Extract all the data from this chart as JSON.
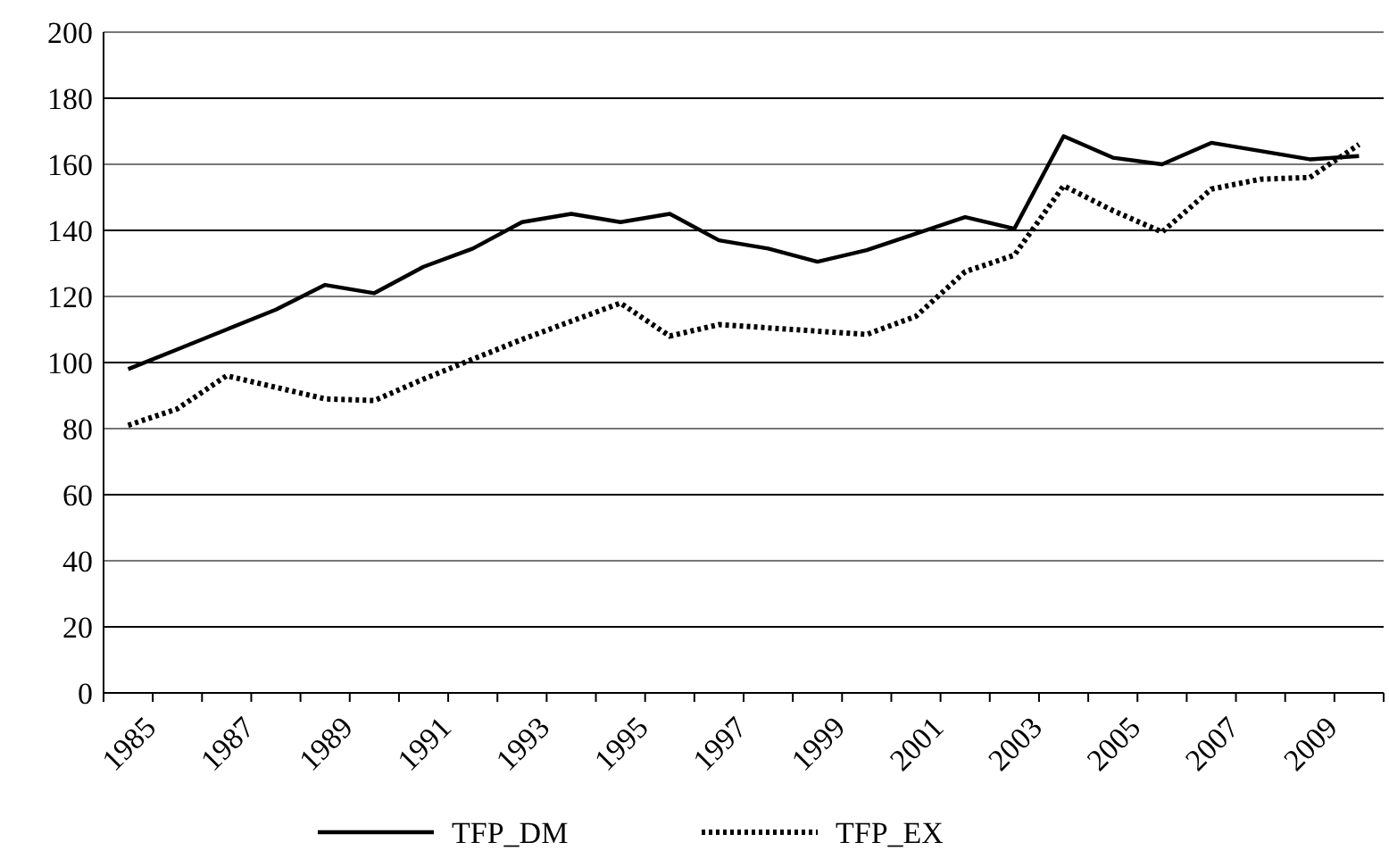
{
  "chart_data": {
    "type": "line",
    "categories": [
      "1985",
      null,
      "1987",
      null,
      "1989",
      null,
      "1991",
      null,
      "1993",
      null,
      "1995",
      null,
      "1997",
      null,
      "1999",
      null,
      "2001",
      null,
      "2003",
      null,
      "2005",
      null,
      "2007",
      null,
      "2009",
      null
    ],
    "ylim": [
      0,
      200
    ],
    "yticks": [
      0,
      20,
      40,
      60,
      80,
      100,
      120,
      140,
      160,
      180,
      200
    ],
    "grid": "y",
    "legend": "bottom",
    "marker": "none",
    "series": [
      {
        "name": "TFP_DM",
        "color": "#000000",
        "line_style": "solid",
        "values": [
          98,
          104,
          110,
          116,
          123.5,
          121,
          129,
          134.5,
          142.5,
          145,
          142.5,
          145,
          137,
          134.5,
          130.5,
          134,
          139,
          144,
          140.5,
          168.5,
          162,
          160,
          166.5,
          164,
          161.5,
          162.5
        ]
      },
      {
        "name": "TFP_EX",
        "color": "#000000",
        "line_style": "dotted",
        "values": [
          81,
          86,
          96,
          92.5,
          89,
          88.5,
          95,
          101,
          107,
          112.5,
          118,
          108,
          111.5,
          110.5,
          109.5,
          108.5,
          114,
          127.5,
          132.5,
          153.5,
          146,
          139.5,
          152.5,
          155.5,
          156,
          166
        ]
      }
    ]
  }
}
